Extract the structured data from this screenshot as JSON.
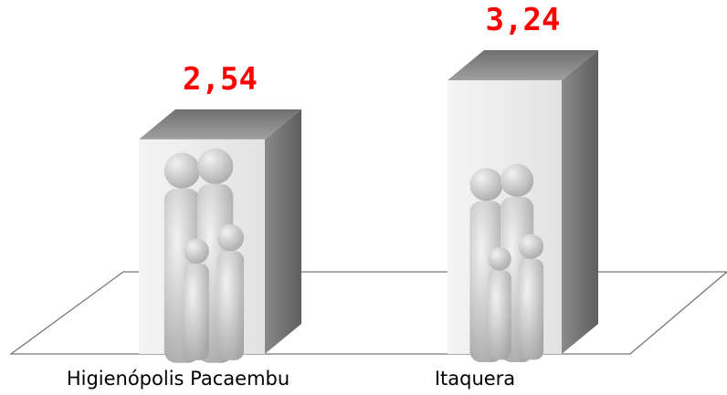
{
  "chart_data": {
    "type": "bar3d",
    "categories": [
      "Higienópolis Pacaembu",
      "Itaquera"
    ],
    "values": [
      2.54,
      3.24
    ],
    "value_labels": [
      "2,54",
      "3,24"
    ],
    "color": "#bdbdbd",
    "value_label_color": "#ff0000"
  }
}
